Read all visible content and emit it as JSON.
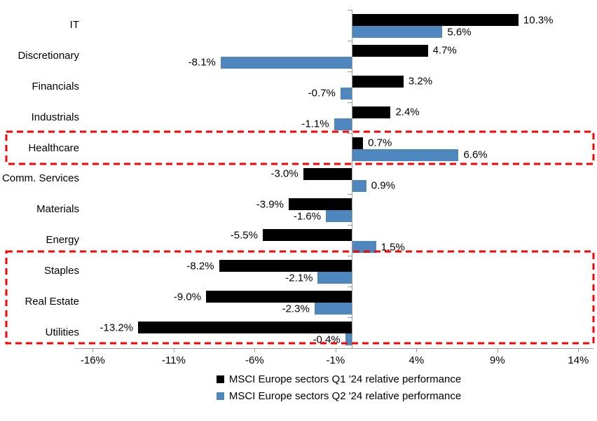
{
  "chart_data": {
    "type": "bar",
    "orientation": "horizontal",
    "title": "",
    "categories": [
      "IT",
      "Discretionary",
      "Financials",
      "Industrials",
      "Healthcare",
      "Comm. Services",
      "Materials",
      "Energy",
      "Staples",
      "Real Estate",
      "Utilities"
    ],
    "series": [
      {
        "name": "MSCI Europe sectors Q1 '24 relative performance",
        "color": "#000000",
        "values": [
          10.3,
          4.7,
          3.2,
          2.4,
          0.7,
          -3.0,
          -3.9,
          -5.5,
          -8.2,
          -9.0,
          -13.2
        ],
        "labels": [
          "10.3%",
          "4.7%",
          "3.2%",
          "2.4%",
          "0.7%",
          "-3.0%",
          "-3.9%",
          "-5.5%",
          "-8.2%",
          "-9.0%",
          "-13.2%"
        ]
      },
      {
        "name": "MSCI Europe sectors Q2 '24 relative performance",
        "color": "#4E86BE",
        "values": [
          5.6,
          -8.1,
          -0.7,
          -1.1,
          6.6,
          0.9,
          -1.6,
          1.5,
          -2.1,
          -2.3,
          -0.4
        ],
        "labels": [
          "5.6%",
          "-8.1%",
          "-0.7%",
          "-1.1%",
          "6.6%",
          "0.9%",
          "-1.6%",
          "1.5%",
          "-2.1%",
          "-2.3%",
          "-0.4%"
        ]
      }
    ],
    "x_axis": {
      "tick_labels": [
        "-16%",
        "-11%",
        "-6%",
        "-1%",
        "4%",
        "9%",
        "14%"
      ],
      "tick_values": [
        -16,
        -11,
        -6,
        -1,
        4,
        9,
        14
      ],
      "unit": "%"
    },
    "xlim": [
      -17,
      15
    ],
    "grid": false,
    "legend_position": "bottom",
    "highlights": [
      {
        "rows": [
          4,
          4
        ],
        "row_labels": [
          "Healthcare"
        ],
        "color": "#FF0000",
        "style": "dashed"
      },
      {
        "rows": [
          8,
          10
        ],
        "row_labels": [
          "Staples",
          "Real Estate",
          "Utilities"
        ],
        "color": "#FF0000",
        "style": "dashed"
      }
    ]
  }
}
